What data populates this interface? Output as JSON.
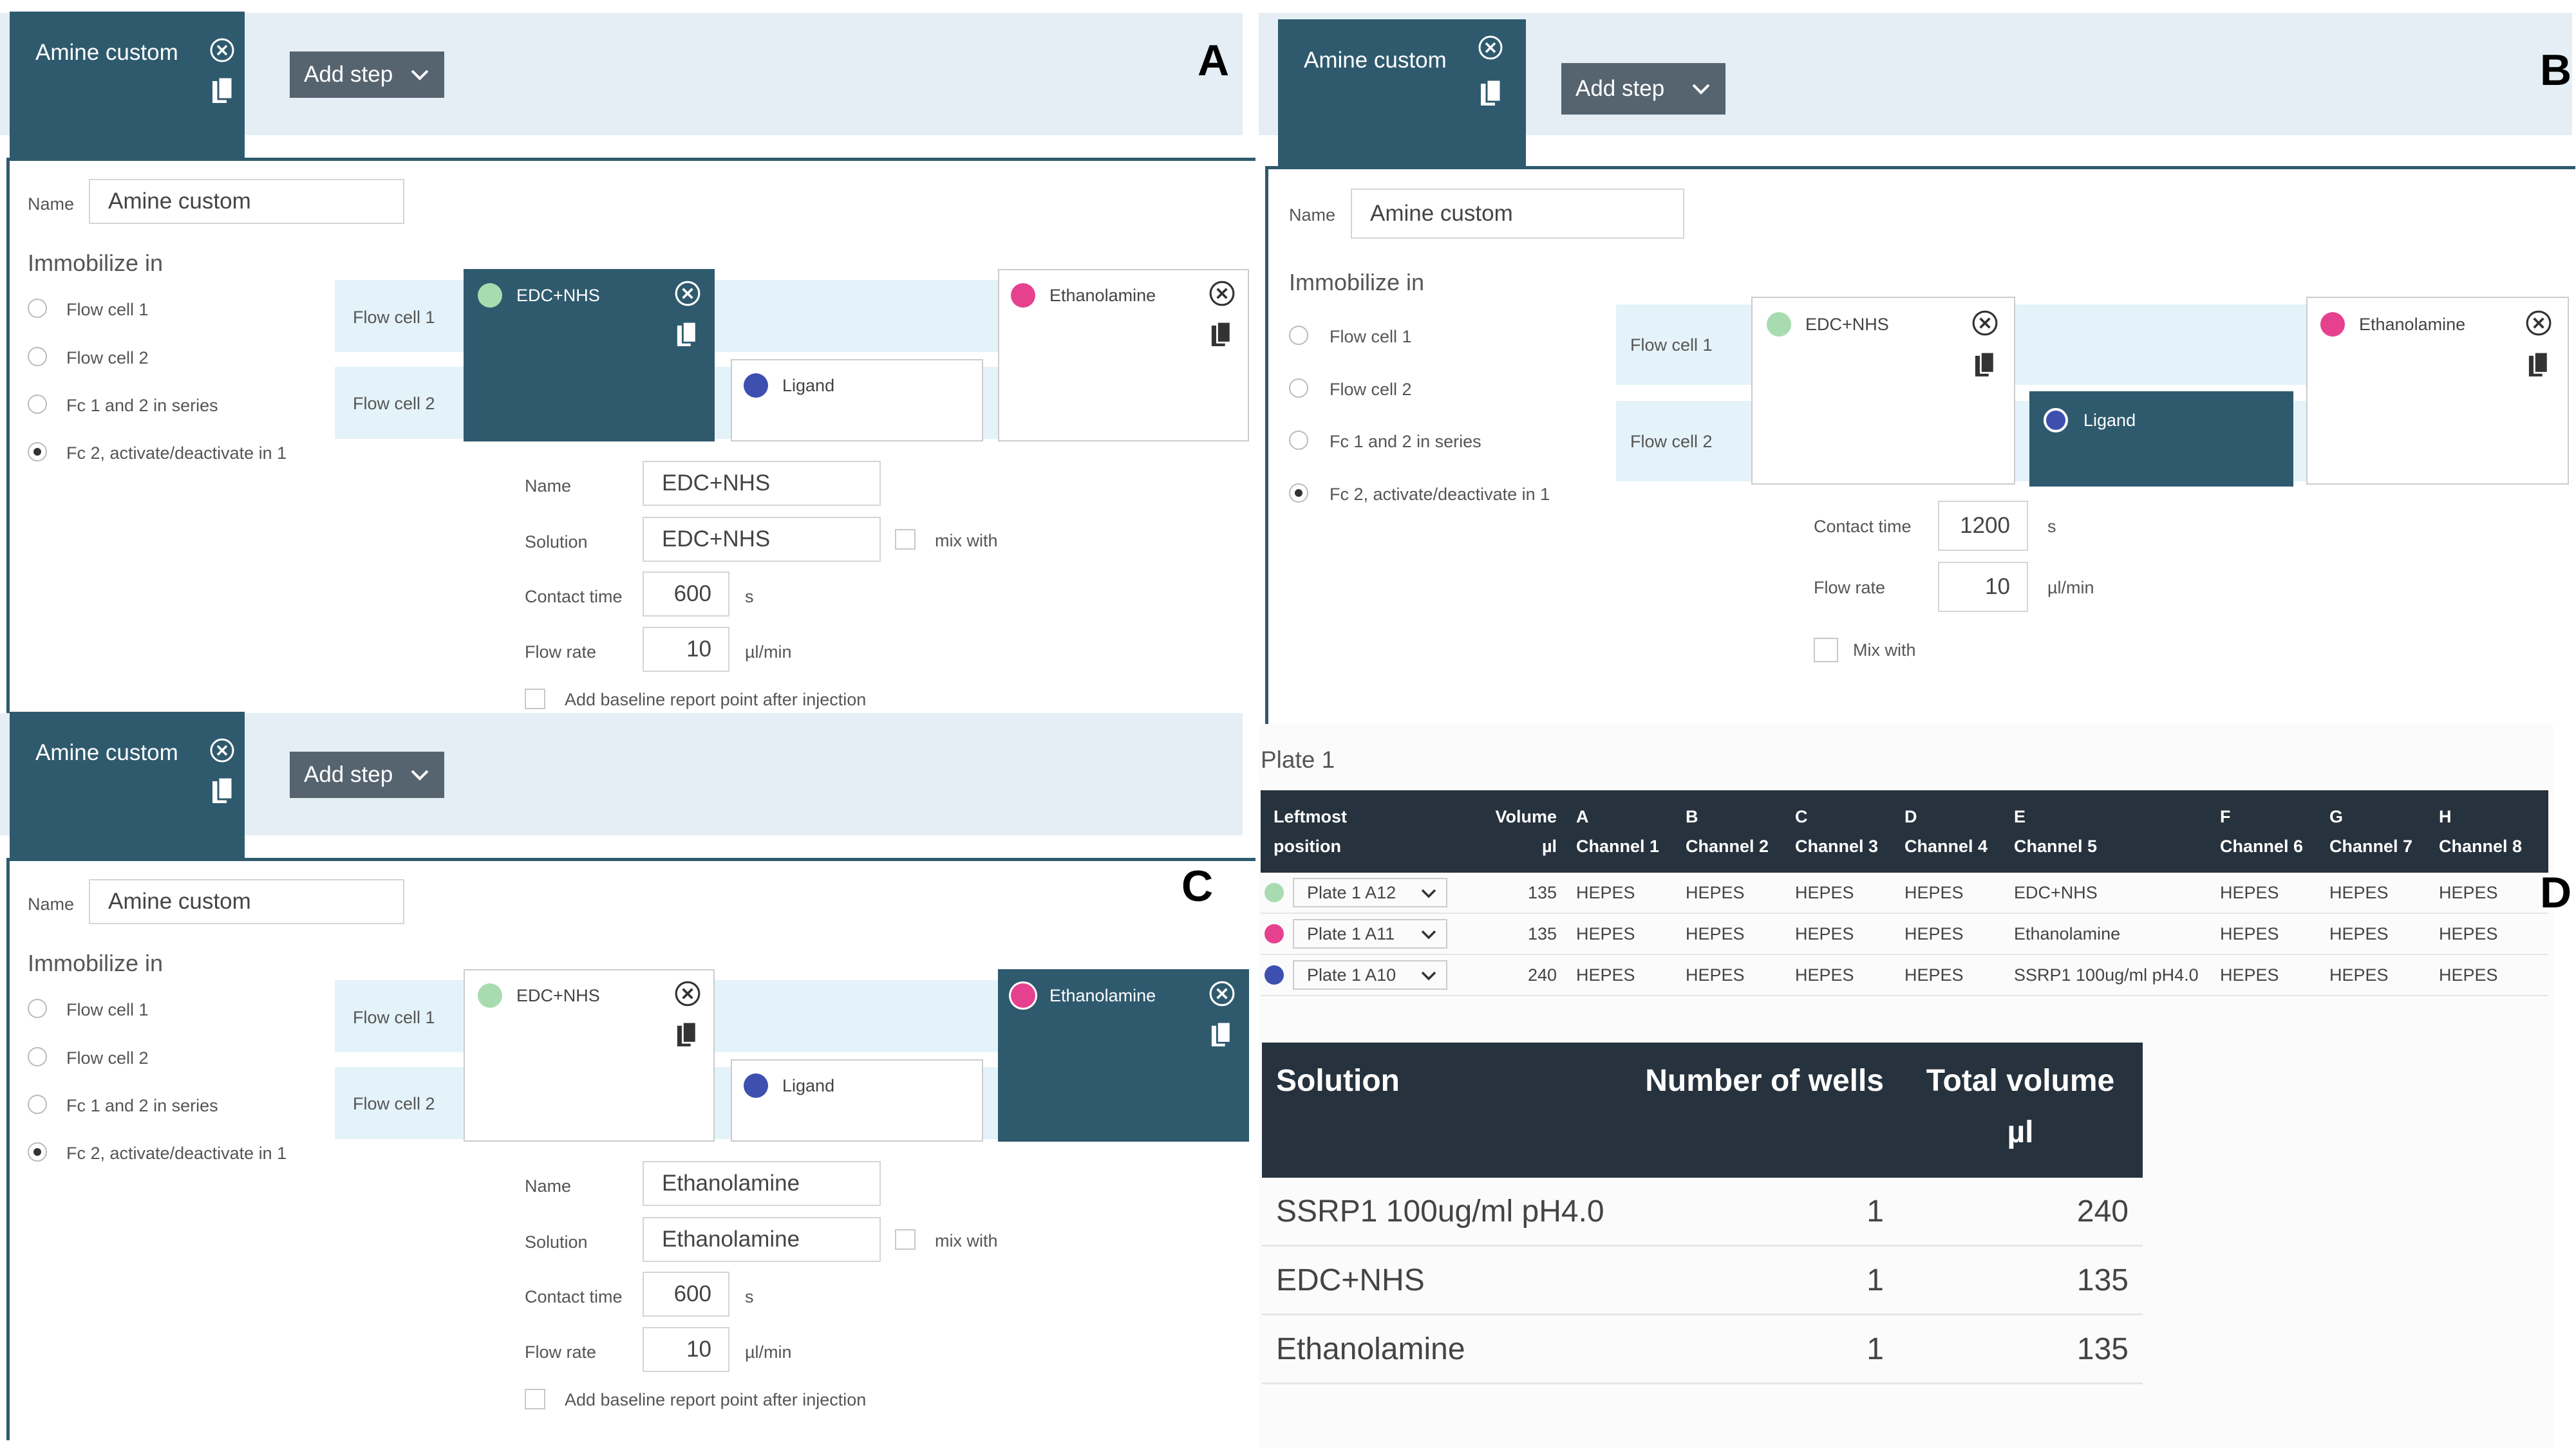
{
  "panels": {
    "A": {
      "letter": "A",
      "tab_title": "Amine custom",
      "add_step": "Add step",
      "name_label": "Name",
      "name_value": "Amine custom",
      "immobilize_label": "Immobilize in",
      "radios": [
        "Flow cell 1",
        "Flow cell 2",
        "Fc 1 and 2 in series",
        "Fc 2, activate/deactivate in 1"
      ],
      "flow_cells": [
        "Flow cell 1",
        "Flow cell 2"
      ],
      "steps": {
        "edc": "EDC+NHS",
        "ligand": "Ligand",
        "eth": "Ethanolamine"
      },
      "form": {
        "name_label": "Name",
        "name_value": "EDC+NHS",
        "solution_label": "Solution",
        "solution_value": "EDC+NHS",
        "mix_with": "mix with",
        "contact_label": "Contact time",
        "contact_value": "600",
        "contact_unit": "s",
        "flow_label": "Flow rate",
        "flow_value": "10",
        "flow_unit": "µl/min",
        "baseline": "Add baseline report point after injection"
      }
    },
    "B": {
      "letter": "B",
      "tab_title": "Amine custom",
      "add_step": "Add step",
      "name_label": "Name",
      "name_value": "Amine custom",
      "immobilize_label": "Immobilize in",
      "radios": [
        "Flow cell 1",
        "Flow cell 2",
        "Fc 1 and 2 in series",
        "Fc 2, activate/deactivate in 1"
      ],
      "flow_cells": [
        "Flow cell 1",
        "Flow cell 2"
      ],
      "steps": {
        "edc": "EDC+NHS",
        "ligand": "Ligand",
        "eth": "Ethanolamine"
      },
      "form": {
        "contact_label": "Contact time",
        "contact_value": "1200",
        "contact_unit": "s",
        "flow_label": "Flow rate",
        "flow_value": "10",
        "flow_unit": "µl/min",
        "mix_with": "Mix with"
      }
    },
    "C": {
      "letter": "C",
      "tab_title": "Amine custom",
      "add_step": "Add step",
      "name_label": "Name",
      "name_value": "Amine custom",
      "immobilize_label": "Immobilize in",
      "radios": [
        "Flow cell 1",
        "Flow cell 2",
        "Fc 1 and 2 in series",
        "Fc 2, activate/deactivate in 1"
      ],
      "flow_cells": [
        "Flow cell 1",
        "Flow cell 2"
      ],
      "steps": {
        "edc": "EDC+NHS",
        "ligand": "Ligand",
        "eth": "Ethanolamine"
      },
      "form": {
        "name_label": "Name",
        "name_value": "Ethanolamine",
        "solution_label": "Solution",
        "solution_value": "Ethanolamine",
        "mix_with": "mix with",
        "contact_label": "Contact time",
        "contact_value": "600",
        "contact_unit": "s",
        "flow_label": "Flow rate",
        "flow_value": "10",
        "flow_unit": "µl/min",
        "baseline": "Add baseline report point after injection"
      }
    }
  },
  "plate": {
    "letter": "D",
    "title": "Plate 1",
    "headers": [
      "Leftmost\nposition",
      "Volume\nµl",
      "A\nChannel 1",
      "B\nChannel 2",
      "C\nChannel 3",
      "D\nChannel 4",
      "E\nChannel 5",
      "F\nChannel 6",
      "G\nChannel 7",
      "H\nChannel 8"
    ],
    "rows": [
      {
        "position": "Plate 1 A12",
        "volume": "135",
        "ch": [
          "HEPES",
          "HEPES",
          "HEPES",
          "HEPES",
          "EDC+NHS",
          "HEPES",
          "HEPES",
          "HEPES"
        ]
      },
      {
        "position": "Plate 1 A11",
        "volume": "135",
        "ch": [
          "HEPES",
          "HEPES",
          "HEPES",
          "HEPES",
          "Ethanolamine",
          "HEPES",
          "HEPES",
          "HEPES"
        ]
      },
      {
        "position": "Plate 1 A10",
        "volume": "240",
        "ch": [
          "HEPES",
          "HEPES",
          "HEPES",
          "HEPES",
          "SSRP1 100ug/ml pH4.0",
          "HEPES",
          "HEPES",
          "HEPES"
        ]
      }
    ]
  },
  "summary": {
    "headers": [
      "Solution",
      "Number of wells",
      "Total volume\nµl"
    ],
    "rows": [
      {
        "solution": "SSRP1 100ug/ml pH4.0",
        "wells": "1",
        "volume": "240"
      },
      {
        "solution": "EDC+NHS",
        "wells": "1",
        "volume": "135"
      },
      {
        "solution": "Ethanolamine",
        "wells": "1",
        "volume": "135"
      }
    ]
  },
  "colors": {
    "edc": "#a8dcb0",
    "eth": "#e6418f",
    "ligand": "#3d50b0",
    "tab": "#2f5a6e",
    "header": "#26323d"
  }
}
